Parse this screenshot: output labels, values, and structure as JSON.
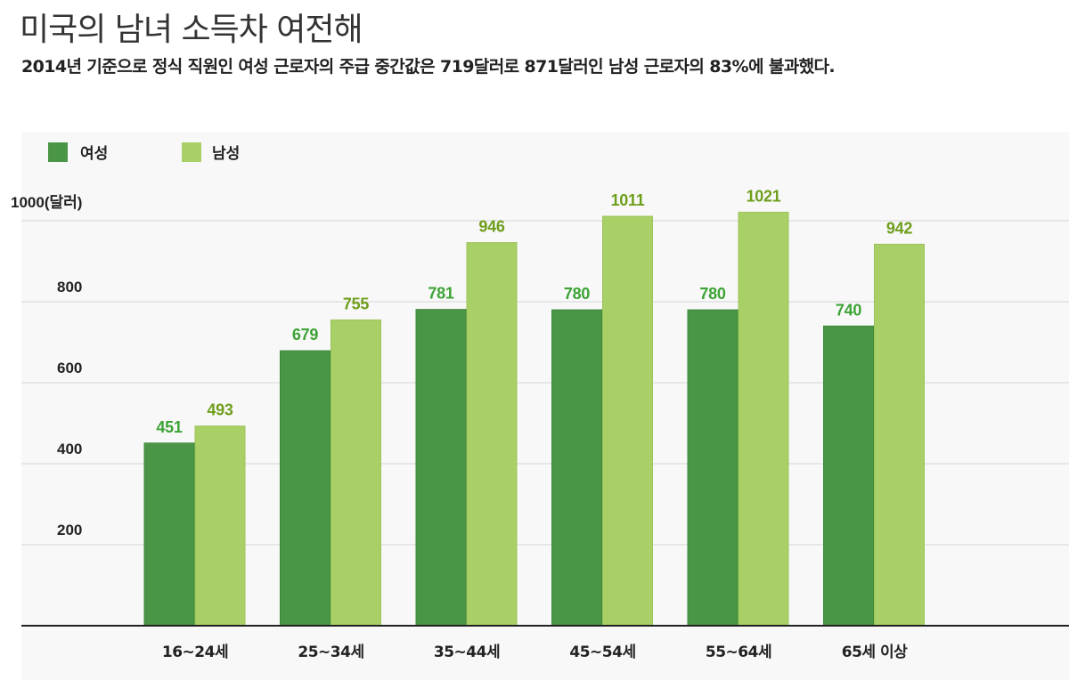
{
  "header": {
    "title": "미국의 남녀 소득차 여전해",
    "subtitle": "2014년 기준으로 정식 직원인 여성 근로자의 주급 중간값은 719달러로 871달러인 남성 근로자의 83%에 불과했다."
  },
  "colors": {
    "female": "#4a9546",
    "male": "#a8d066",
    "female_label": "#3da335",
    "male_label": "#6f9e1c",
    "grid": "#dcdcdc",
    "axis": "#222222"
  },
  "chart_data": {
    "type": "bar",
    "ylabel": "1000(달러)",
    "ylim": [
      0,
      1000
    ],
    "yticks": [
      200,
      400,
      600,
      800
    ],
    "grid": true,
    "legend_position": "top-left",
    "categories": [
      "16~24세",
      "25~34세",
      "35~44세",
      "45~54세",
      "55~64세",
      "65세 이상"
    ],
    "series": [
      {
        "name": "여성",
        "values": [
          451,
          679,
          781,
          780,
          780,
          740
        ]
      },
      {
        "name": "남성",
        "values": [
          493,
          755,
          946,
          1011,
          1021,
          942
        ]
      }
    ]
  }
}
